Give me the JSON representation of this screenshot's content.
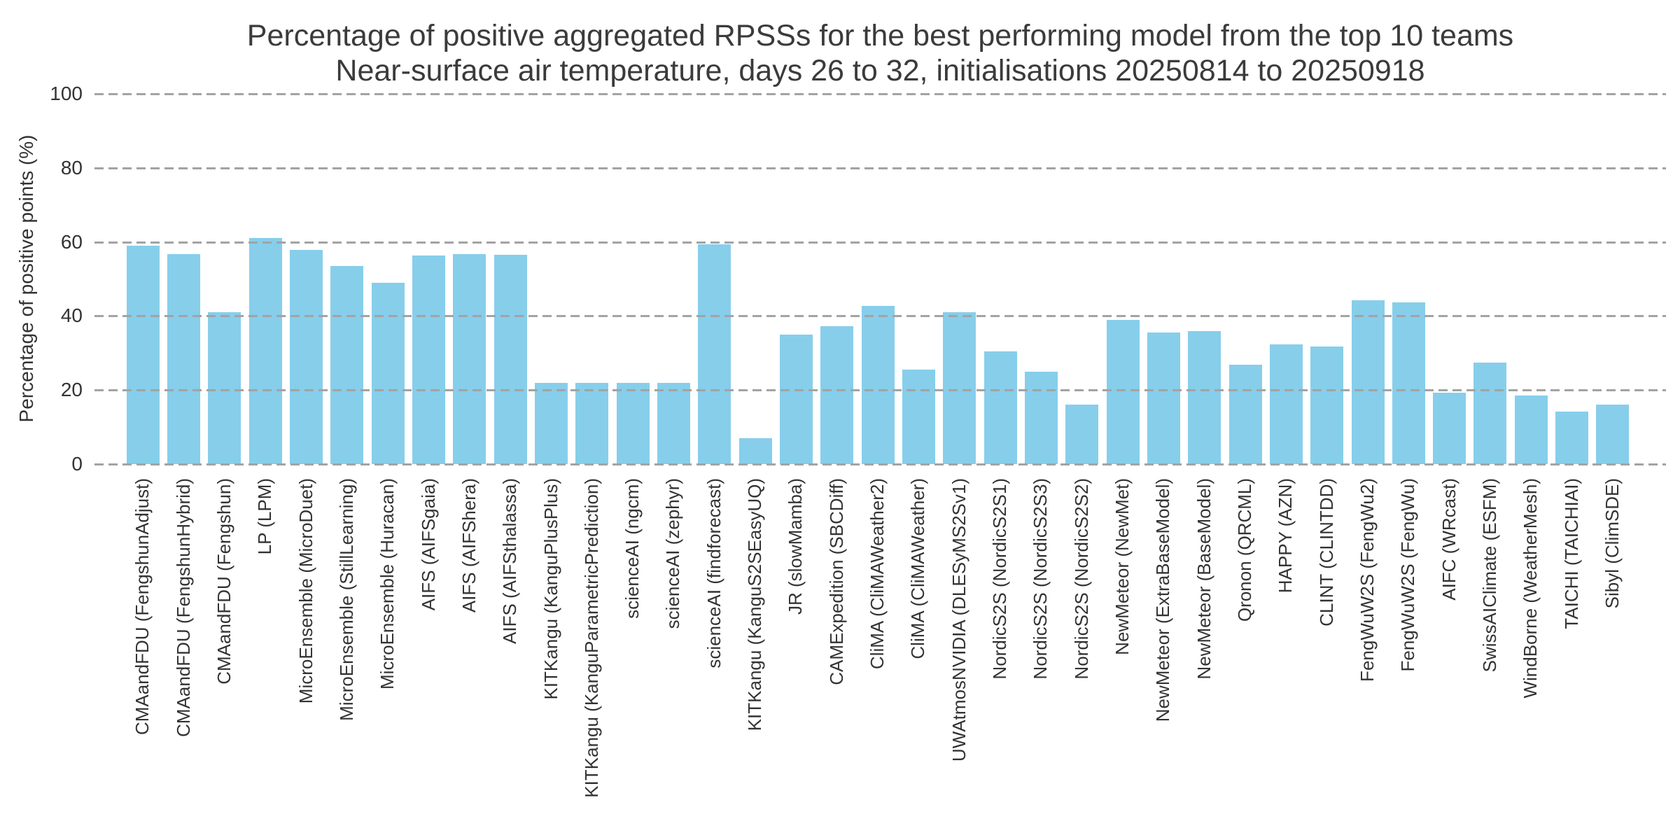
{
  "chart_data": {
    "type": "bar",
    "title": "Percentage of positive aggregated RPSSs for the best performing model from the top 10 teams",
    "subtitle": "Near-surface air temperature, days 26 to 32, initialisations 20250814 to 20250918",
    "xlabel": "",
    "ylabel": "Percentage of positive points (%)",
    "ylim": [
      0,
      100
    ],
    "yticks": [
      0,
      20,
      40,
      60,
      80,
      100
    ],
    "grid": "horizontal-dashed",
    "legend": "none",
    "bar_color": "#87CEEB",
    "grid_color": "#a3a3a3",
    "categories": [
      "CMAandFDU (FengshunAdjust)",
      "CMAandFDU (FengshunHybrid)",
      "CMAandFDU (Fengshun)",
      "LP (LPM)",
      "MicroEnsemble (MicroDuet)",
      "MicroEnsemble (StillLearning)",
      "MicroEnsemble (Huracan)",
      "AIFS (AIFSgaia)",
      "AIFS (AIFShera)",
      "AIFS (AIFSthalassa)",
      "KITKangu (KanguPlusPlus)",
      "KITKangu (KanguParametricPrediction)",
      "scienceAI (ngcm)",
      "scienceAI (zephyr)",
      "scienceAI (findforecast)",
      "KITKangu (KanguS2SEasyUQ)",
      "JR (slowMamba)",
      "CAMExpedition (SBCDiff)",
      "CliMA (CliMAWeather2)",
      "CliMA (CliMAWeather)",
      "UWAtmosNVIDIA (DLESyMS2Sv1)",
      "NordicS2S (NordicS2S1)",
      "NordicS2S (NordicS2S3)",
      "NordicS2S (NordicS2S2)",
      "NewMeteor (NewMet)",
      "NewMeteor (ExtraBaseModel)",
      "NewMeteor (BaseModel)",
      "Qronon (QRCML)",
      "HAPPY (AZN)",
      "CLINT (CLINTDD)",
      "FengWuW2S (FengWu2)",
      "FengWuW2S (FengWu)",
      "AIFC (WRcast)",
      "SwissAIClimate (ESFM)",
      "WindBorne (WeatherMesh)",
      "TAICHI (TAICHIAI)",
      "Sibyl (ClimSDE)"
    ],
    "values": [
      59.0,
      56.8,
      41.0,
      61.1,
      57.9,
      53.5,
      49.0,
      56.3,
      56.8,
      56.5,
      22.0,
      22.0,
      22.0,
      22.0,
      59.4,
      7.0,
      35.0,
      37.2,
      42.7,
      25.5,
      41.0,
      30.4,
      25.0,
      16.1,
      39.0,
      35.5,
      35.9,
      26.9,
      32.3,
      31.8,
      44.2,
      43.7,
      19.3,
      27.4,
      18.5,
      14.2,
      16.1
    ]
  }
}
